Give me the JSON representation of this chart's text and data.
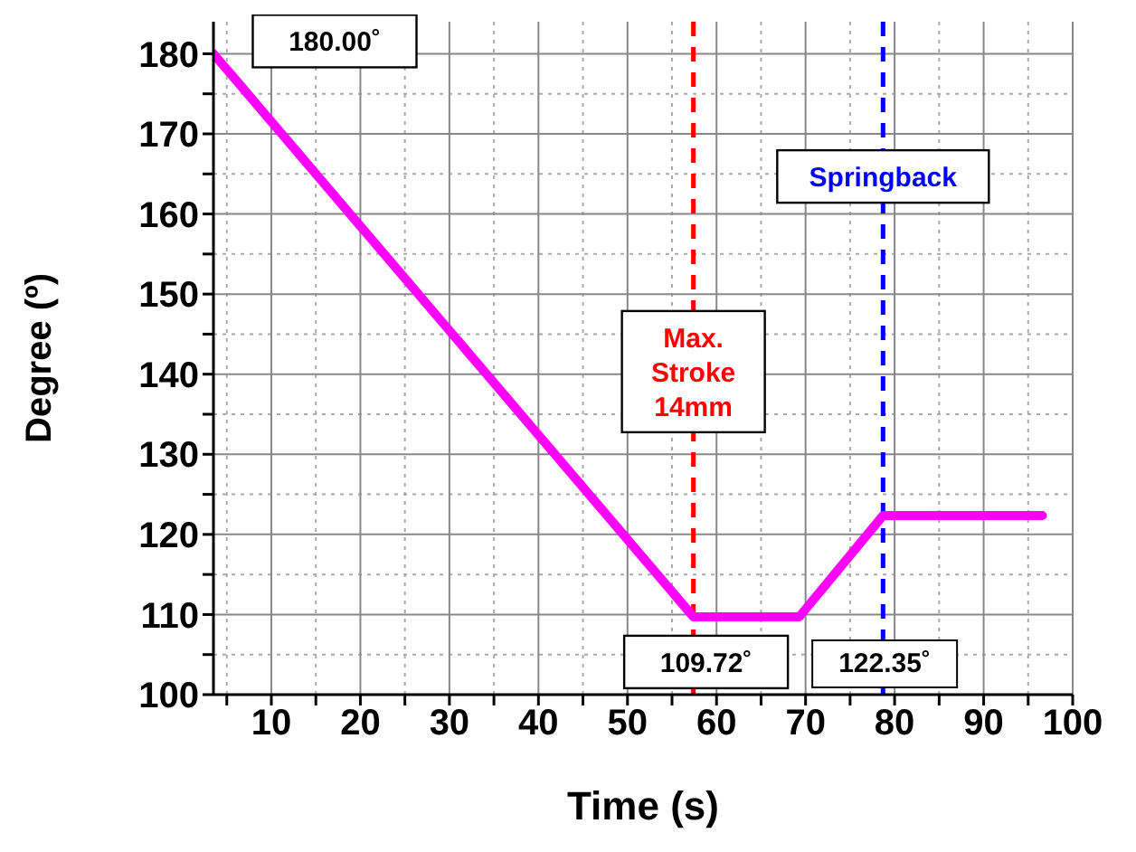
{
  "chart_data": {
    "type": "line",
    "xlabel": "Time (s)",
    "ylabel": "Degree (º)",
    "x": [
      3.5,
      57.4,
      69.3,
      78.7,
      96.6
    ],
    "series": [
      {
        "color": "#ff00ff",
        "values": [
          180,
          109.72,
          109.72,
          122.35,
          122.35
        ]
      }
    ],
    "xlim": [
      3.5,
      100
    ],
    "xticks": [
      {
        "value": 5,
        "label": null
      },
      10,
      {
        "value": 15,
        "label": null
      },
      20,
      {
        "value": 25,
        "label": null
      },
      30,
      {
        "value": 35,
        "label": null
      },
      40,
      {
        "value": 45,
        "label": null
      },
      50,
      {
        "value": 55,
        "label": null
      },
      60,
      {
        "value": 65,
        "label": null
      },
      70,
      {
        "value": 75,
        "label": null
      },
      80,
      {
        "value": 85,
        "label": null
      },
      90,
      {
        "value": 95,
        "label": null
      },
      100
    ],
    "ylim": [
      100,
      184
    ],
    "yticks": [
      100,
      {
        "value": 105,
        "label": null
      },
      110,
      {
        "value": 115,
        "label": null
      },
      120,
      {
        "value": 125,
        "label": null
      },
      130,
      {
        "value": 135,
        "label": null
      },
      140,
      {
        "value": 145,
        "label": null
      },
      150,
      {
        "value": 155,
        "label": null
      },
      160,
      {
        "value": 165,
        "label": null
      },
      170,
      {
        "value": 175,
        "label": null
      },
      180
    ],
    "grid": true,
    "marker": "none",
    "line_style": "solid",
    "ref_lines": [
      {
        "axis": "x",
        "value": 57.4,
        "label": "Max.\nStroke\n14mm",
        "color": "#ff0000",
        "line_style": "dashed"
      },
      {
        "axis": "x",
        "value": 78.7,
        "label": "Springback",
        "color": "#0000ff",
        "line_style": "dashed"
      }
    ],
    "annotations": [
      {
        "text": "180.00˚",
        "x": 3.5,
        "y": 180
      },
      {
        "text": "109.72˚",
        "x": 57.4,
        "y": 109.72
      },
      "122.35˚"
    ]
  }
}
